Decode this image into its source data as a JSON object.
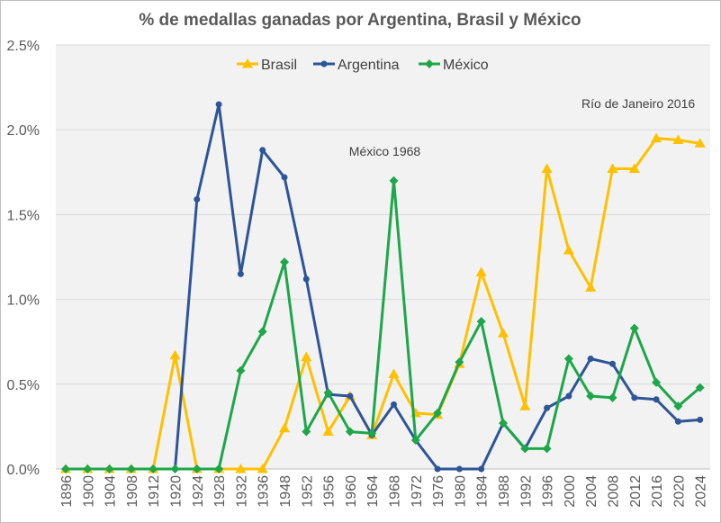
{
  "chart_data": {
    "type": "line",
    "title": "% de medallas ganadas por Argentina, Brasil y México",
    "x": [
      "1896",
      "1900",
      "1904",
      "1908",
      "1912",
      "1920",
      "1924",
      "1928",
      "1932",
      "1936",
      "1948",
      "1952",
      "1956",
      "1960",
      "1964",
      "1968",
      "1972",
      "1976",
      "1980",
      "1984",
      "1988",
      "1992",
      "1996",
      "2000",
      "2004",
      "2008",
      "2012",
      "2016",
      "2020",
      "2024"
    ],
    "yticks": [
      "0.0%",
      "0.5%",
      "1.0%",
      "1.5%",
      "2.0%",
      "2.5%"
    ],
    "ylim": [
      0,
      2.5
    ],
    "grid": "horizontal",
    "legend_position": "top",
    "series": [
      {
        "name": "Brasil",
        "color": "#FFC000",
        "marker": "triangle",
        "values": [
          0,
          0,
          0,
          0,
          0,
          0.67,
          0,
          0,
          0,
          0,
          0.24,
          0.66,
          0.22,
          0.43,
          0.2,
          0.56,
          0.33,
          0.32,
          0.62,
          1.16,
          0.8,
          0.37,
          1.77,
          1.29,
          1.07,
          1.77,
          1.77,
          1.95,
          1.94,
          1.92
        ]
      },
      {
        "name": "Argentina",
        "color": "#2E5597",
        "marker": "circle",
        "values": [
          null,
          null,
          null,
          null,
          null,
          0,
          1.59,
          2.15,
          1.15,
          1.88,
          1.72,
          1.12,
          0.44,
          0.43,
          0.2,
          0.38,
          0.17,
          0,
          0,
          0,
          0.27,
          0.12,
          0.36,
          0.43,
          0.65,
          0.62,
          0.42,
          0.41,
          0.28,
          0.29
        ]
      },
      {
        "name": "México",
        "color": "#1EA64A",
        "marker": "diamond",
        "values": [
          0,
          0,
          0,
          0,
          0,
          0,
          0,
          0,
          0.58,
          0.81,
          1.22,
          0.22,
          0.45,
          0.22,
          0.21,
          1.7,
          0.17,
          0.33,
          0.63,
          0.87,
          0.27,
          0.12,
          0.12,
          0.65,
          0.43,
          0.42,
          0.83,
          0.51,
          0.37,
          0.48
        ]
      }
    ],
    "annotations": [
      {
        "text": "México 1968",
        "x": "1968",
        "y": 1.7
      },
      {
        "text": "Río de Janeiro 2016",
        "x": "2016",
        "y": 1.95
      }
    ]
  }
}
